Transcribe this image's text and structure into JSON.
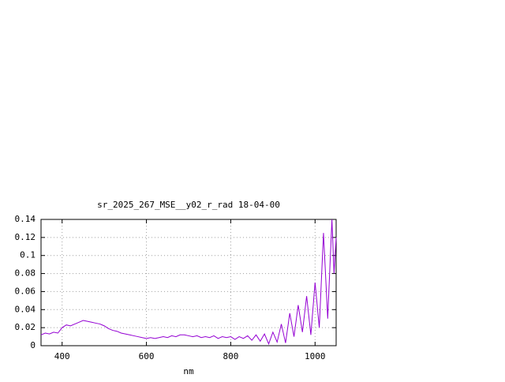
{
  "chart_data": {
    "type": "line",
    "title": "sr_2025_267_MSE__y02_r_rad 18-04-00",
    "x_label": "nm",
    "x": [
      350,
      360,
      370,
      380,
      390,
      400,
      410,
      420,
      430,
      440,
      450,
      460,
      470,
      480,
      490,
      500,
      510,
      520,
      530,
      540,
      550,
      560,
      570,
      580,
      590,
      600,
      610,
      620,
      630,
      640,
      650,
      660,
      670,
      680,
      690,
      700,
      710,
      720,
      730,
      740,
      750,
      760,
      770,
      780,
      790,
      800,
      810,
      820,
      830,
      840,
      850,
      860,
      870,
      880,
      890,
      900,
      910,
      920,
      930,
      940,
      950,
      960,
      970,
      980,
      990,
      1000,
      1010,
      1020,
      1030,
      1040,
      1045,
      1050
    ],
    "series": [
      {
        "color": "#9400d3",
        "values": [
          0.012,
          0.014,
          0.013,
          0.015,
          0.014,
          0.02,
          0.023,
          0.022,
          0.024,
          0.026,
          0.028,
          0.027,
          0.026,
          0.025,
          0.024,
          0.022,
          0.019,
          0.017,
          0.016,
          0.014,
          0.013,
          0.012,
          0.011,
          0.01,
          0.009,
          0.008,
          0.009,
          0.008,
          0.009,
          0.01,
          0.009,
          0.011,
          0.01,
          0.012,
          0.012,
          0.011,
          0.01,
          0.011,
          0.009,
          0.01,
          0.009,
          0.011,
          0.008,
          0.01,
          0.009,
          0.01,
          0.007,
          0.01,
          0.008,
          0.011,
          0.006,
          0.012,
          0.005,
          0.013,
          0.002,
          0.015,
          0.004,
          0.024,
          0.003,
          0.036,
          0.01,
          0.045,
          0.015,
          0.055,
          0.012,
          0.07,
          0.02,
          0.125,
          0.03,
          0.14,
          0.08,
          0.12
        ]
      }
    ],
    "xlim": [
      350,
      1050
    ],
    "ylim": [
      0,
      0.14
    ],
    "xticks": [
      400,
      600,
      800,
      1000
    ],
    "yticks": [
      0,
      0.02,
      0.04,
      0.06,
      0.08,
      0.1,
      0.12,
      0.14
    ],
    "grid": true
  }
}
